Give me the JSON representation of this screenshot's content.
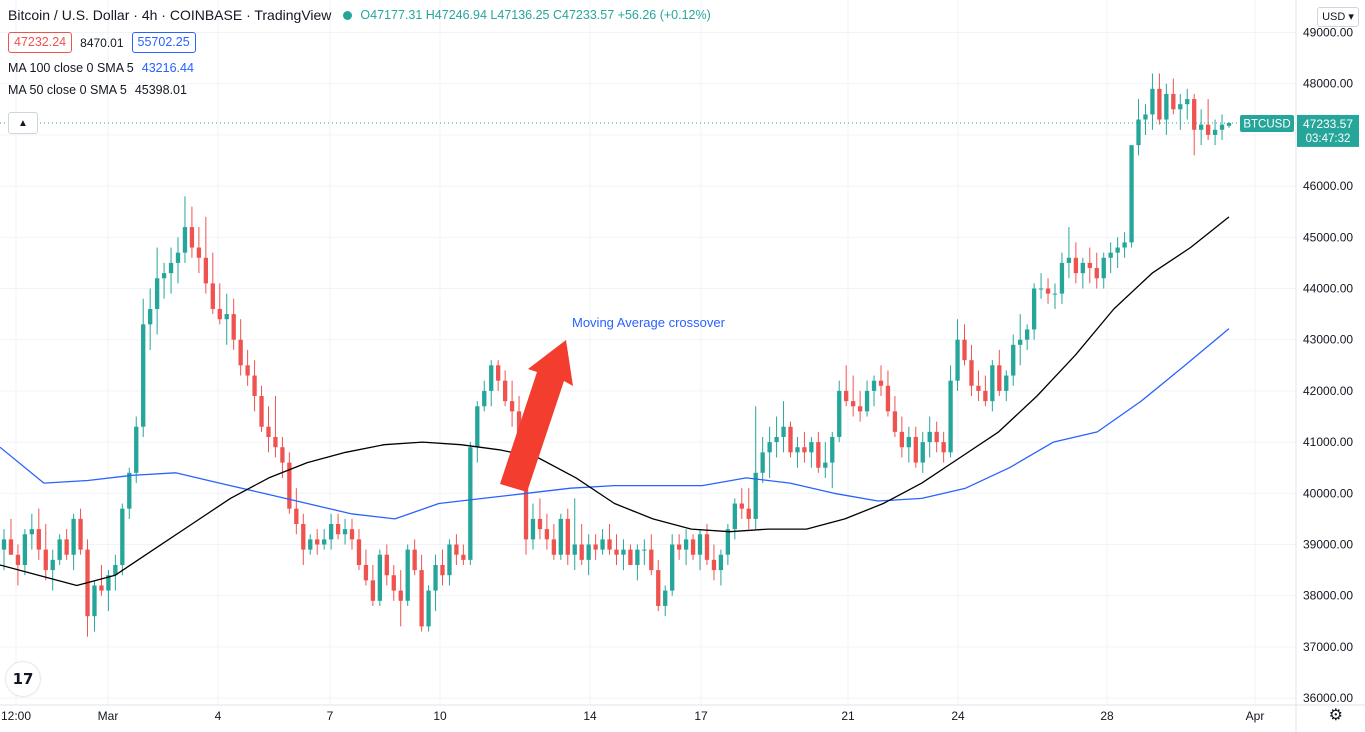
{
  "header": {
    "title": "Bitcoin / U.S. Dollar · 4h · COINBASE · TradingView",
    "ohlc": {
      "o": "O47177.31",
      "h": "H47246.94",
      "l": "L47136.25",
      "c": "C47233.57",
      "chg": "+56.26 (+0.12%)"
    },
    "bid": "47232.24",
    "spread": "8470.01",
    "ask": "55702.25",
    "ma100_label": "MA 100 close 0 SMA 5",
    "ma100_value": "43216.44",
    "ma50_label": "MA 50 close 0 SMA 5",
    "ma50_value": "45398.01",
    "collapse_icon": "chevron-up-icon"
  },
  "toolbar": {
    "currency": "USD",
    "currency_icon": "chevron-down-icon",
    "settings_icon": "gear-icon",
    "logo_text": "17"
  },
  "colors": {
    "up": "#26a69a",
    "down": "#ef5350",
    "ma100": "#2962ff",
    "ma50": "#000000",
    "annotation": "#2962ff",
    "arrow": "#f23d2f",
    "grid": "#f0f3fa"
  },
  "chart_data": {
    "type": "candlestick",
    "symbol": "BTCUSD",
    "last_price": "47233.57",
    "countdown": "03:47:32",
    "annotation": "Moving Average crossover",
    "ylim": [
      36000,
      49000
    ],
    "y_ticks": [
      "49000.00",
      "48000.00",
      "47000.00",
      "46000.00",
      "45000.00",
      "44000.00",
      "43000.00",
      "42000.00",
      "41000.00",
      "40000.00",
      "39000.00",
      "38000.00",
      "37000.00",
      "36000.00"
    ],
    "x_ticks": [
      "12:00",
      "Mar",
      "4",
      "7",
      "10",
      "14",
      "17",
      "21",
      "24",
      "28",
      "Apr"
    ],
    "candles": [
      [
        38900,
        39300,
        38500,
        39100
      ],
      [
        39100,
        39500,
        38800,
        38800
      ],
      [
        38800,
        39000,
        38200,
        38600
      ],
      [
        38600,
        39300,
        38400,
        39200
      ],
      [
        39200,
        39600,
        38900,
        39300
      ],
      [
        39300,
        39700,
        38700,
        38900
      ],
      [
        38900,
        39400,
        38300,
        38500
      ],
      [
        38500,
        38900,
        38100,
        38700
      ],
      [
        38700,
        39200,
        38600,
        39100
      ],
      [
        39100,
        39300,
        38700,
        38800
      ],
      [
        38800,
        39600,
        38500,
        39500
      ],
      [
        39500,
        39700,
        38800,
        38900
      ],
      [
        38900,
        39100,
        37200,
        37600
      ],
      [
        37600,
        38300,
        37300,
        38200
      ],
      [
        38200,
        38600,
        38000,
        38100
      ],
      [
        38100,
        38500,
        37700,
        38400
      ],
      [
        38400,
        38800,
        38100,
        38600
      ],
      [
        38600,
        39800,
        38400,
        39700
      ],
      [
        39700,
        40500,
        39500,
        40400
      ],
      [
        40400,
        41500,
        40200,
        41300
      ],
      [
        41300,
        43800,
        41100,
        43300
      ],
      [
        43300,
        44000,
        42800,
        43600
      ],
      [
        43600,
        44800,
        43100,
        44200
      ],
      [
        44200,
        44500,
        43800,
        44300
      ],
      [
        44300,
        44800,
        43900,
        44500
      ],
      [
        44500,
        45000,
        44100,
        44700
      ],
      [
        44700,
        45800,
        44500,
        45200
      ],
      [
        45200,
        45600,
        44600,
        44800
      ],
      [
        44800,
        45200,
        44300,
        44600
      ],
      [
        44600,
        45400,
        43900,
        44100
      ],
      [
        44100,
        44700,
        43500,
        43600
      ],
      [
        43600,
        44100,
        43300,
        43400
      ],
      [
        43400,
        43900,
        42900,
        43500
      ],
      [
        43500,
        43800,
        42800,
        43000
      ],
      [
        43000,
        43400,
        42300,
        42500
      ],
      [
        42500,
        42800,
        42100,
        42300
      ],
      [
        42300,
        42600,
        41600,
        41900
      ],
      [
        41900,
        42100,
        41200,
        41300
      ],
      [
        41300,
        41700,
        40800,
        41100
      ],
      [
        41100,
        41900,
        40700,
        40900
      ],
      [
        40900,
        41100,
        40300,
        40600
      ],
      [
        40600,
        40800,
        39600,
        39700
      ],
      [
        39700,
        40100,
        39200,
        39400
      ],
      [
        39400,
        39600,
        38600,
        38900
      ],
      [
        38900,
        39200,
        38800,
        39100
      ],
      [
        39100,
        39300,
        38800,
        39000
      ],
      [
        39000,
        39300,
        38900,
        39100
      ],
      [
        39100,
        39600,
        38900,
        39400
      ],
      [
        39400,
        39600,
        39100,
        39200
      ],
      [
        39200,
        39500,
        39000,
        39300
      ],
      [
        39300,
        39500,
        38900,
        39100
      ],
      [
        39100,
        39300,
        38500,
        38600
      ],
      [
        38600,
        38900,
        38200,
        38300
      ],
      [
        38300,
        38600,
        37800,
        37900
      ],
      [
        37900,
        38900,
        37800,
        38800
      ],
      [
        38800,
        39000,
        38200,
        38400
      ],
      [
        38400,
        38600,
        37900,
        38100
      ],
      [
        38100,
        38500,
        37400,
        37900
      ],
      [
        37900,
        39000,
        37800,
        38900
      ],
      [
        38900,
        39100,
        38400,
        38500
      ],
      [
        38500,
        38800,
        37300,
        37400
      ],
      [
        37400,
        38200,
        37300,
        38100
      ],
      [
        38100,
        38800,
        37700,
        38600
      ],
      [
        38600,
        38900,
        38200,
        38400
      ],
      [
        38400,
        39100,
        38200,
        39000
      ],
      [
        39000,
        39200,
        38600,
        38800
      ],
      [
        38800,
        39000,
        38600,
        38700
      ],
      [
        38700,
        41000,
        38600,
        40900
      ],
      [
        40900,
        41800,
        40600,
        41700
      ],
      [
        41700,
        42200,
        41600,
        42000
      ],
      [
        42000,
        42600,
        41700,
        42500
      ],
      [
        42500,
        42600,
        42000,
        42200
      ],
      [
        42200,
        42400,
        41700,
        41800
      ],
      [
        41800,
        42200,
        41300,
        41600
      ],
      [
        41600,
        41900,
        40600,
        40700
      ],
      [
        40700,
        40900,
        38800,
        39100
      ],
      [
        39100,
        39800,
        38900,
        39500
      ],
      [
        39500,
        39900,
        39100,
        39300
      ],
      [
        39300,
        39600,
        38900,
        39100
      ],
      [
        39100,
        39400,
        38700,
        38800
      ],
      [
        38800,
        39600,
        38700,
        39500
      ],
      [
        39500,
        39700,
        38600,
        38800
      ],
      [
        38800,
        39900,
        38500,
        39000
      ],
      [
        39000,
        39400,
        38600,
        38700
      ],
      [
        38700,
        39200,
        38400,
        39000
      ],
      [
        39000,
        39200,
        38700,
        38900
      ],
      [
        38900,
        39300,
        38800,
        39100
      ],
      [
        39100,
        39400,
        38800,
        38900
      ],
      [
        38900,
        39200,
        38600,
        38800
      ],
      [
        38800,
        39100,
        38500,
        38900
      ],
      [
        38900,
        39000,
        38600,
        38600
      ],
      [
        38600,
        39000,
        38300,
        38900
      ],
      [
        38900,
        39100,
        38600,
        38900
      ],
      [
        38900,
        39200,
        38400,
        38500
      ],
      [
        38500,
        38700,
        37700,
        37800
      ],
      [
        37800,
        38200,
        37600,
        38100
      ],
      [
        38100,
        39200,
        38000,
        39000
      ],
      [
        39000,
        39200,
        38700,
        38900
      ],
      [
        38900,
        39300,
        38600,
        39100
      ],
      [
        39100,
        39200,
        38700,
        38800
      ],
      [
        38800,
        39300,
        38500,
        39200
      ],
      [
        39200,
        39400,
        38600,
        38700
      ],
      [
        38700,
        39000,
        38300,
        38500
      ],
      [
        38500,
        38900,
        38200,
        38800
      ],
      [
        38800,
        39400,
        38600,
        39300
      ],
      [
        39300,
        39900,
        39100,
        39800
      ],
      [
        39800,
        40100,
        39500,
        39700
      ],
      [
        39700,
        40100,
        39300,
        39500
      ],
      [
        39500,
        41700,
        39300,
        40400
      ],
      [
        40400,
        41100,
        40200,
        40800
      ],
      [
        40800,
        41300,
        40300,
        41000
      ],
      [
        41000,
        41500,
        40700,
        41100
      ],
      [
        41100,
        41800,
        40800,
        41300
      ],
      [
        41300,
        41400,
        40700,
        40800
      ],
      [
        40800,
        41100,
        40500,
        40900
      ],
      [
        40900,
        41200,
        40600,
        40800
      ],
      [
        40800,
        41100,
        40500,
        41000
      ],
      [
        41000,
        41200,
        40400,
        40500
      ],
      [
        40500,
        41000,
        40300,
        40600
      ],
      [
        40600,
        41200,
        40100,
        41100
      ],
      [
        41100,
        42200,
        41000,
        42000
      ],
      [
        42000,
        42500,
        41700,
        41800
      ],
      [
        41800,
        42300,
        41500,
        41700
      ],
      [
        41700,
        42000,
        41400,
        41600
      ],
      [
        41600,
        42200,
        41500,
        42000
      ],
      [
        42000,
        42300,
        41700,
        42200
      ],
      [
        42200,
        42500,
        41900,
        42100
      ],
      [
        42100,
        42400,
        41500,
        41600
      ],
      [
        41600,
        41900,
        41100,
        41200
      ],
      [
        41200,
        41500,
        40700,
        40900
      ],
      [
        40900,
        41300,
        40600,
        41100
      ],
      [
        41100,
        41300,
        40500,
        40600
      ],
      [
        40600,
        41200,
        40400,
        41000
      ],
      [
        41000,
        41500,
        40700,
        41200
      ],
      [
        41200,
        41400,
        40800,
        41000
      ],
      [
        41000,
        41200,
        40600,
        40800
      ],
      [
        40800,
        42500,
        40700,
        42200
      ],
      [
        42200,
        43400,
        42000,
        43000
      ],
      [
        43000,
        43300,
        42500,
        42600
      ],
      [
        42600,
        42900,
        41900,
        42100
      ],
      [
        42100,
        42400,
        41800,
        42000
      ],
      [
        42000,
        42300,
        41700,
        41800
      ],
      [
        41800,
        42600,
        41600,
        42500
      ],
      [
        42500,
        42800,
        41900,
        42000
      ],
      [
        42000,
        42400,
        41800,
        42300
      ],
      [
        42300,
        43100,
        42100,
        42900
      ],
      [
        42900,
        43500,
        42500,
        43000
      ],
      [
        43000,
        43300,
        42800,
        43200
      ],
      [
        43200,
        44100,
        43000,
        44000
      ],
      [
        44000,
        44300,
        43800,
        44000
      ],
      [
        44000,
        44200,
        43700,
        43900
      ],
      [
        43900,
        44100,
        43600,
        43900
      ],
      [
        43900,
        44700,
        43700,
        44500
      ],
      [
        44500,
        45200,
        44200,
        44600
      ],
      [
        44600,
        44900,
        44100,
        44300
      ],
      [
        44300,
        44600,
        44000,
        44500
      ],
      [
        44500,
        44800,
        44100,
        44400
      ],
      [
        44400,
        44700,
        44000,
        44200
      ],
      [
        44200,
        44700,
        44000,
        44600
      ],
      [
        44600,
        44900,
        44300,
        44700
      ],
      [
        44700,
        45000,
        44400,
        44800
      ],
      [
        44800,
        45100,
        44600,
        44900
      ],
      [
        44900,
        46700,
        44800,
        46800
      ],
      [
        46800,
        47700,
        46600,
        47300
      ],
      [
        47300,
        47600,
        47000,
        47400
      ],
      [
        47400,
        48200,
        47100,
        47900
      ],
      [
        47900,
        48200,
        47200,
        47300
      ],
      [
        47300,
        48000,
        47000,
        47800
      ],
      [
        47800,
        48100,
        47400,
        47500
      ],
      [
        47500,
        47800,
        47100,
        47600
      ],
      [
        47600,
        47900,
        47300,
        47700
      ],
      [
        47700,
        47800,
        46600,
        47100
      ],
      [
        47100,
        47500,
        46800,
        47200
      ],
      [
        47200,
        47700,
        46900,
        47000
      ],
      [
        47000,
        47300,
        46800,
        47100
      ],
      [
        47100,
        47400,
        46900,
        47200
      ],
      [
        47177.31,
        47246.94,
        47136.25,
        47233.57
      ]
    ],
    "ma50": [
      38600,
      38400,
      38200,
      38400,
      38900,
      39400,
      39900,
      40300,
      40600,
      40800,
      40950,
      41000,
      40950,
      40850,
      40700,
      40300,
      39800,
      39500,
      39300,
      39250,
      39300,
      39300,
      39500,
      39800,
      40200,
      40700,
      41200,
      41900,
      42700,
      43600,
      44300,
      44800,
      45398
    ],
    "ma100": [
      40900,
      40200,
      40250,
      40350,
      40400,
      40200,
      40000,
      39800,
      39600,
      39500,
      39800,
      39900,
      40000,
      40100,
      40150,
      40150,
      40150,
      40300,
      40200,
      40000,
      39850,
      39900,
      40100,
      40500,
      41000,
      41200,
      41800,
      42500,
      43216
    ]
  }
}
